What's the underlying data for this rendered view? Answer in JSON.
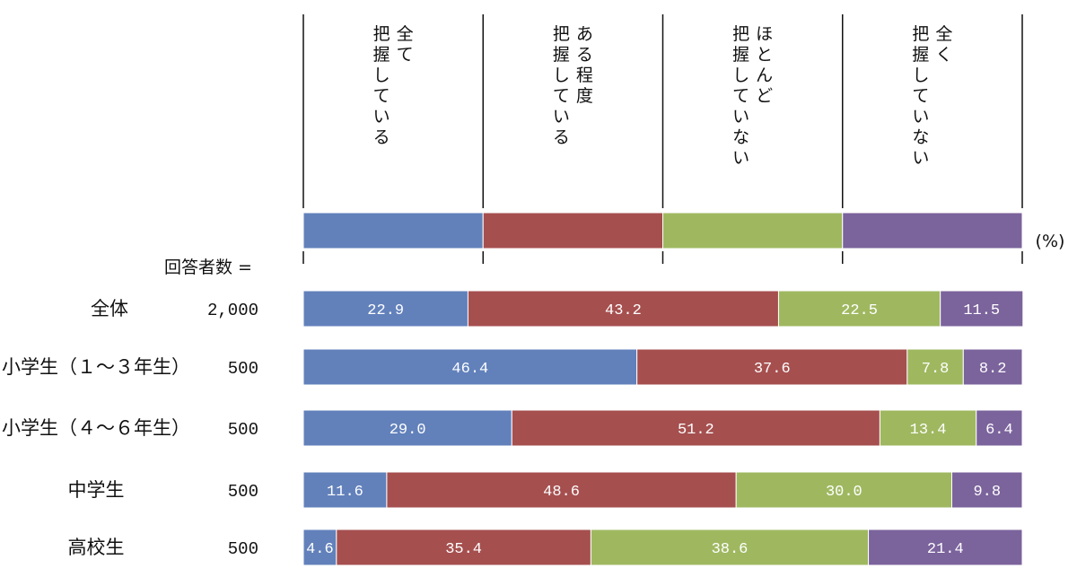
{
  "chart_data": {
    "type": "bar",
    "stacked": true,
    "orientation": "horizontal",
    "unit": "(%)",
    "respondents_label": "回答者数 =",
    "series": [
      {
        "name": "全て把握している",
        "name_lines": [
          [
            "全",
            "て"
          ],
          [
            "把",
            "握",
            "し",
            "て",
            "い",
            "る"
          ]
        ],
        "color": "#6281bb",
        "values": [
          22.9,
          46.4,
          29.0,
          11.6,
          4.6
        ]
      },
      {
        "name": "ある程度把握している",
        "name_lines": [
          [
            "あ",
            "る",
            "程",
            "度"
          ],
          [
            "把",
            "握",
            "し",
            "て",
            "い",
            "る"
          ]
        ],
        "color": "#a64f4f",
        "values": [
          43.2,
          37.6,
          51.2,
          48.6,
          35.4
        ]
      },
      {
        "name": "ほとんど把握していない",
        "name_lines": [
          [
            "ほ",
            "と",
            "ん",
            "ど"
          ],
          [
            "把",
            "握",
            "し",
            "て",
            "い",
            "な",
            "い"
          ]
        ],
        "color": "#9fb860",
        "values": [
          22.5,
          7.8,
          13.4,
          30.0,
          38.6
        ]
      },
      {
        "name": "全く把握していない",
        "name_lines": [
          [
            "全",
            "く"
          ],
          [
            "把",
            "握",
            "し",
            "て",
            "い",
            "な",
            "い"
          ]
        ],
        "color": "#7b639c",
        "values": [
          11.5,
          8.2,
          6.4,
          9.8,
          21.4
        ]
      }
    ],
    "value_labels": [
      [
        "22.9",
        "43.2",
        "22.5",
        "11.5"
      ],
      [
        "46.4",
        "37.6",
        "7.8",
        "8.2"
      ],
      [
        "29.0",
        "51.2",
        "13.4",
        "6.4"
      ],
      [
        "11.6",
        "48.6",
        "30.0",
        "9.8"
      ],
      [
        "4.6",
        "35.4",
        "38.6",
        "21.4"
      ]
    ],
    "categories": [
      "全体",
      "小学生（１～３年生）",
      "小学生（４～６年生）",
      "中学生",
      "高校生"
    ],
    "counts": [
      "2,000",
      "500",
      "500",
      "500",
      "500"
    ],
    "xlim": [
      0,
      100
    ]
  }
}
